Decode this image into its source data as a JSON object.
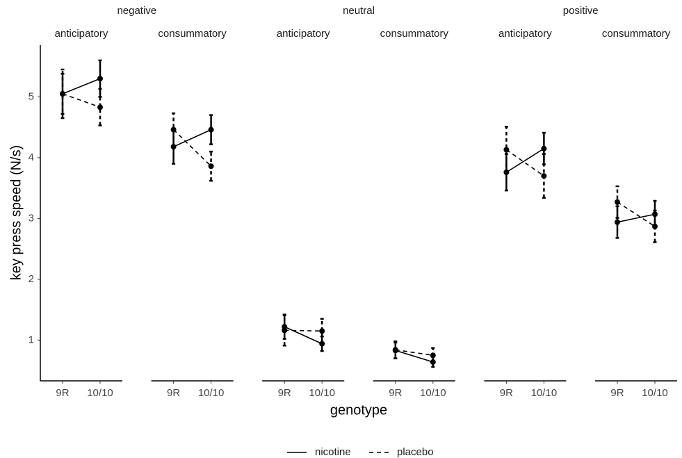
{
  "chart_data": {
    "type": "line",
    "ylabel": "key press speed (N/s)",
    "xlabel": "genotype",
    "categories": [
      "9R",
      "10/10"
    ],
    "ylim": [
      0.33,
      5.85
    ],
    "yticks": [
      1,
      2,
      3,
      4,
      5
    ],
    "series": [
      {
        "name": "nicotine",
        "color": "#000000",
        "dash": "solid"
      },
      {
        "name": "placebo",
        "color": "#000000",
        "dash": "dashed"
      }
    ],
    "groups": [
      {
        "name": "negative",
        "panels": [
          {
            "name": "anticipatory",
            "series": [
              {
                "values": [
                  5.05,
                  5.3
                ],
                "errors": [
                  0.33,
                  0.3
                ]
              },
              {
                "values": [
                  5.05,
                  4.83
                ],
                "errors": [
                  0.4,
                  0.3
                ]
              }
            ]
          },
          {
            "name": "consummatory",
            "series": [
              {
                "values": [
                  4.18,
                  4.46
                ],
                "errors": [
                  0.28,
                  0.24
                ]
              },
              {
                "values": [
                  4.46,
                  3.86
                ],
                "errors": [
                  0.27,
                  0.24
                ]
              }
            ]
          }
        ]
      },
      {
        "name": "neutral",
        "panels": [
          {
            "name": "anticipatory",
            "series": [
              {
                "values": [
                  1.22,
                  0.94
                ],
                "errors": [
                  0.2,
                  0.12
                ]
              },
              {
                "values": [
                  1.16,
                  1.15
                ],
                "errors": [
                  0.25,
                  0.2
                ]
              }
            ]
          },
          {
            "name": "consummatory",
            "series": [
              {
                "values": [
                  0.83,
                  0.64
                ],
                "errors": [
                  0.13,
                  0.08
                ]
              },
              {
                "values": [
                  0.84,
                  0.75
                ],
                "errors": [
                  0.14,
                  0.12
                ]
              }
            ]
          }
        ]
      },
      {
        "name": "positive",
        "panels": [
          {
            "name": "anticipatory",
            "series": [
              {
                "values": [
                  3.76,
                  4.15
                ],
                "errors": [
                  0.3,
                  0.26
                ]
              },
              {
                "values": [
                  4.13,
                  3.7
                ],
                "errors": [
                  0.38,
                  0.36
                ]
              }
            ]
          },
          {
            "name": "consummatory",
            "series": [
              {
                "values": [
                  2.94,
                  3.07
                ],
                "errors": [
                  0.26,
                  0.22
                ]
              },
              {
                "values": [
                  3.27,
                  2.87
                ],
                "errors": [
                  0.26,
                  0.26
                ]
              }
            ]
          }
        ]
      }
    ]
  }
}
